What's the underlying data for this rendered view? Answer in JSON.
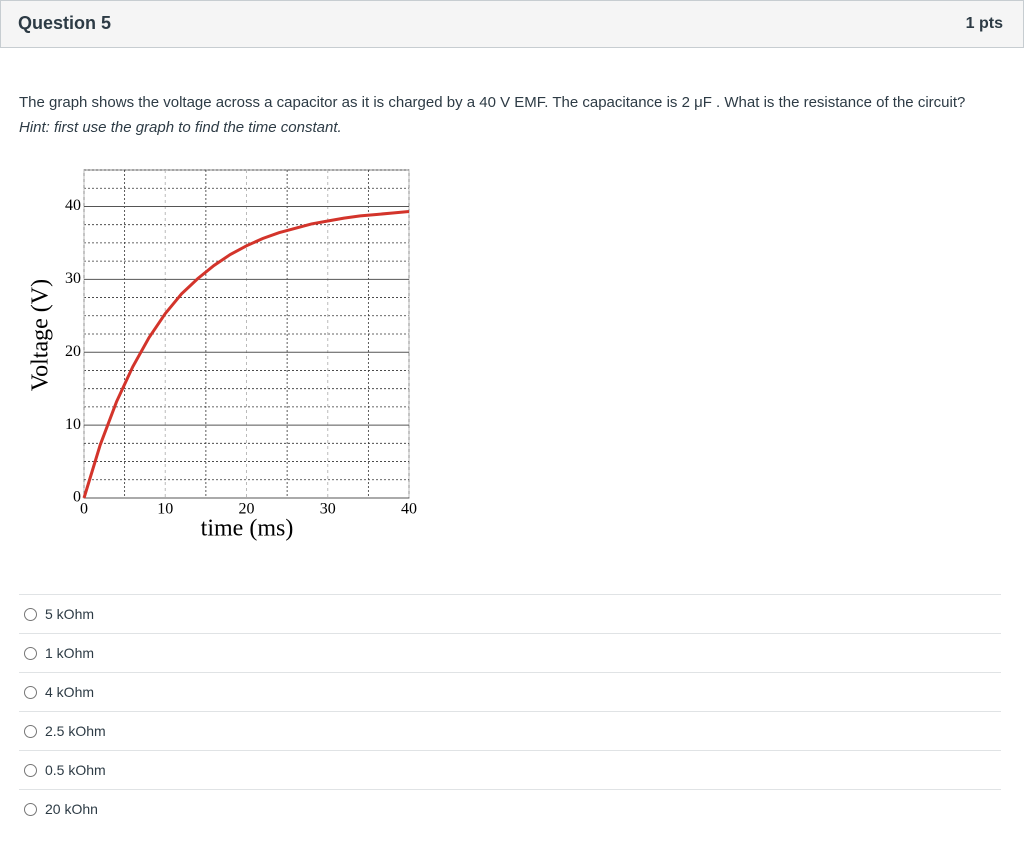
{
  "header": {
    "title": "Question 5",
    "points": "1 pts"
  },
  "question": {
    "text": "The graph shows the voltage across a capacitor as it is charged by a 40 V EMF. The capacitance is 2 μF . What is the resistance of the circuit?",
    "hint": "Hint: first use the graph to find the time constant."
  },
  "chart_data": {
    "type": "line",
    "xlabel": "time (ms)",
    "ylabel": "Voltage (V)",
    "x": [
      0,
      2,
      4,
      6,
      8,
      10,
      12,
      14,
      16,
      18,
      20,
      22,
      24,
      26,
      28,
      30,
      32,
      34,
      36,
      38,
      40
    ],
    "series": [
      {
        "color": "#d3342b",
        "values": [
          0,
          7.3,
          13.2,
          18.0,
          22.0,
          25.3,
          28.0,
          30.1,
          31.9,
          33.4,
          34.6,
          35.6,
          36.4,
          37.0,
          37.6,
          38.0,
          38.4,
          38.7,
          38.9,
          39.1,
          39.3
        ]
      }
    ],
    "xlim": [
      0,
      40
    ],
    "ylim": [
      0,
      45
    ],
    "xticks": [
      0,
      10,
      20,
      30,
      40
    ],
    "yticks": [
      0,
      10,
      20,
      30,
      40
    ],
    "x_minor_ticks": [
      5,
      15,
      25,
      35
    ],
    "y_minor_ticks": [
      2.5,
      5,
      7.5,
      12.5,
      15,
      17.5,
      22.5,
      25,
      27.5,
      32.5,
      35,
      37.5,
      42.5,
      45
    ],
    "grid": true
  },
  "options": [
    "5 kOhm",
    "1 kOhm",
    "4 kOhm",
    "2.5 kOhm",
    "0.5 kOhm",
    "20 kOhn"
  ]
}
